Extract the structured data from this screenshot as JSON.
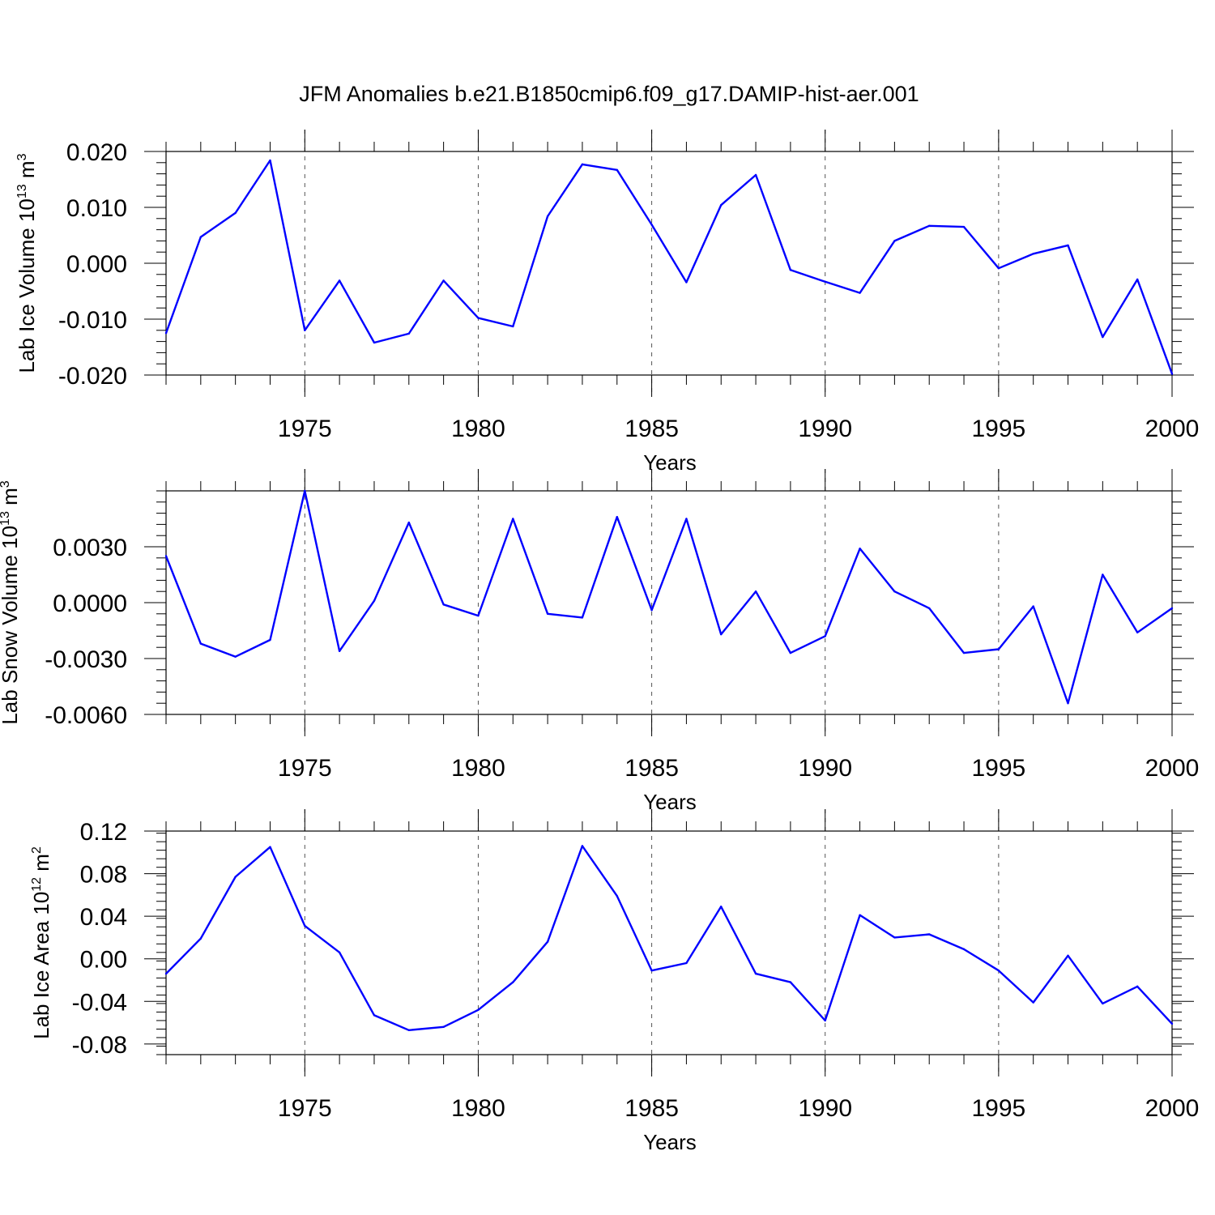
{
  "figure_title": "JFM Anomalies b.e21.B1850cmip6.f09_g17.DAMIP-hist-aer.001",
  "colors": {
    "series": "#0000ff",
    "grid": "#555555",
    "axis": "#000000"
  },
  "chart_data": [
    {
      "type": "line",
      "ylabel": "Lab Ice Volume 10",
      "ylabel_exp": "13",
      "ylabel_unit": " m",
      "ylabel_unit_exp": "3",
      "xlabel": "Years",
      "xlim": [
        1971,
        2000
      ],
      "ylim": [
        -0.02,
        0.02
      ],
      "yticks": [
        -0.02,
        -0.01,
        0.0,
        0.01,
        0.02
      ],
      "ytick_labels": [
        "-0.020",
        "-0.010",
        "0.000",
        "0.010",
        "0.020"
      ],
      "xticks": [
        1975,
        1980,
        1985,
        1990,
        1995,
        2000
      ],
      "xtick_labels": [
        "1975",
        "1980",
        "1985",
        "1990",
        "1995",
        "2000"
      ],
      "x": [
        1971,
        1972,
        1973,
        1974,
        1975,
        1976,
        1977,
        1978,
        1979,
        1980,
        1981,
        1982,
        1983,
        1984,
        1985,
        1986,
        1987,
        1988,
        1989,
        1990,
        1991,
        1992,
        1993,
        1994,
        1995,
        1996,
        1997,
        1998,
        1999,
        2000
      ],
      "values": [
        -0.0125,
        0.0047,
        0.009,
        0.0184,
        -0.012,
        -0.0031,
        -0.0142,
        -0.0126,
        -0.0031,
        -0.0098,
        -0.0113,
        0.0084,
        0.0177,
        0.0167,
        0.0069,
        -0.0034,
        0.0104,
        0.0158,
        -0.0012,
        -0.0033,
        -0.0053,
        0.004,
        0.0067,
        0.0065,
        -0.0009,
        0.0017,
        0.0032,
        -0.0132,
        -0.0029,
        -0.0198
      ]
    },
    {
      "type": "line",
      "ylabel": "Lab Snow Volume 10",
      "ylabel_exp": "13",
      "ylabel_unit": " m",
      "ylabel_unit_exp": "3",
      "xlabel": "Years",
      "xlim": [
        1971,
        2000
      ],
      "ylim": [
        -0.006,
        0.006
      ],
      "yticks": [
        -0.006,
        -0.003,
        0.0,
        0.003
      ],
      "ytick_labels": [
        "-0.0060",
        "-0.0030",
        "0.0000",
        "0.0030"
      ],
      "xticks": [
        1975,
        1980,
        1985,
        1990,
        1995,
        2000
      ],
      "xtick_labels": [
        "1975",
        "1980",
        "1985",
        "1990",
        "1995",
        "2000"
      ],
      "x": [
        1971,
        1972,
        1973,
        1974,
        1975,
        1976,
        1977,
        1978,
        1979,
        1980,
        1981,
        1982,
        1983,
        1984,
        1985,
        1986,
        1987,
        1988,
        1989,
        1990,
        1991,
        1992,
        1993,
        1994,
        1995,
        1996,
        1997,
        1998,
        1999,
        2000
      ],
      "values": [
        0.0025,
        -0.0022,
        -0.0029,
        -0.002,
        0.006,
        -0.0026,
        0.0001,
        0.0043,
        -0.0001,
        -0.0007,
        0.0045,
        -0.0006,
        -0.0008,
        0.0046,
        -0.0004,
        0.0045,
        -0.0017,
        0.0006,
        -0.0027,
        -0.0018,
        0.0029,
        0.0006,
        -0.0003,
        -0.0027,
        -0.0025,
        -0.0002,
        -0.0054,
        0.0015,
        -0.0016,
        -0.0003
      ]
    },
    {
      "type": "line",
      "ylabel": "Lab Ice Area 10",
      "ylabel_exp": "12",
      "ylabel_unit": " m",
      "ylabel_unit_exp": "2",
      "xlabel": "Years",
      "xlim": [
        1971,
        2000
      ],
      "ylim": [
        -0.09,
        0.12
      ],
      "yticks": [
        -0.08,
        -0.04,
        0.0,
        0.04,
        0.08,
        0.12
      ],
      "ytick_labels": [
        "-0.08",
        "-0.04",
        "0.00",
        "0.04",
        "0.08",
        "0.12"
      ],
      "xticks": [
        1975,
        1980,
        1985,
        1990,
        1995,
        2000
      ],
      "xtick_labels": [
        "1975",
        "1980",
        "1985",
        "1990",
        "1995",
        "2000"
      ],
      "x": [
        1971,
        1972,
        1973,
        1974,
        1975,
        1976,
        1977,
        1978,
        1979,
        1980,
        1981,
        1982,
        1983,
        1984,
        1985,
        1986,
        1987,
        1988,
        1989,
        1990,
        1991,
        1992,
        1993,
        1994,
        1995,
        1996,
        1997,
        1998,
        1999,
        2000
      ],
      "values": [
        -0.014,
        0.019,
        0.077,
        0.105,
        0.031,
        0.006,
        -0.053,
        -0.067,
        -0.064,
        -0.048,
        -0.022,
        0.016,
        0.106,
        0.059,
        -0.011,
        -0.004,
        0.049,
        -0.014,
        -0.022,
        -0.058,
        0.041,
        0.02,
        0.023,
        0.009,
        -0.011,
        -0.041,
        0.003,
        -0.042,
        -0.026,
        -0.061
      ]
    }
  ]
}
